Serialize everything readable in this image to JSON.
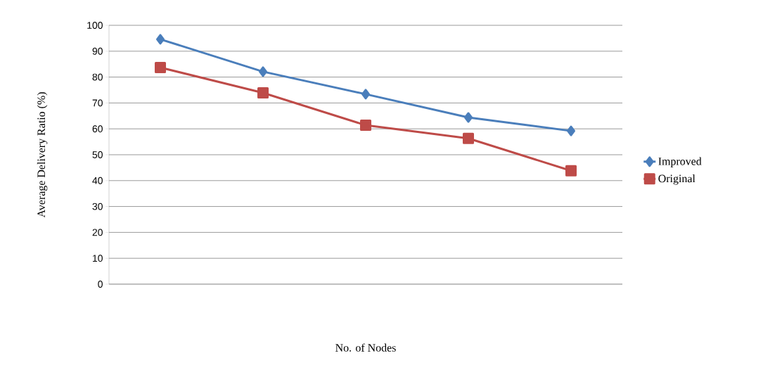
{
  "chart_data": {
    "type": "line",
    "xlabel": "No. of Nodes",
    "ylabel": "Average Delivery Ratio (%)",
    "categories": [
      null,
      null,
      null,
      null,
      null
    ],
    "series": [
      {
        "name": "Improved",
        "color": "#4a7ebb",
        "marker": "diamond",
        "values": [
          94.6,
          82.1,
          73.4,
          64.4,
          59.2
        ]
      },
      {
        "name": "Original",
        "color": "#be4b48",
        "marker": "square",
        "values": [
          83.7,
          73.9,
          61.4,
          56.3,
          43.8
        ]
      }
    ],
    "ylim": [
      0,
      100
    ],
    "yticks": [
      0,
      10,
      20,
      30,
      40,
      50,
      60,
      70,
      80,
      90,
      100
    ],
    "grid": "y",
    "legend": "right",
    "line_style": "solid"
  }
}
